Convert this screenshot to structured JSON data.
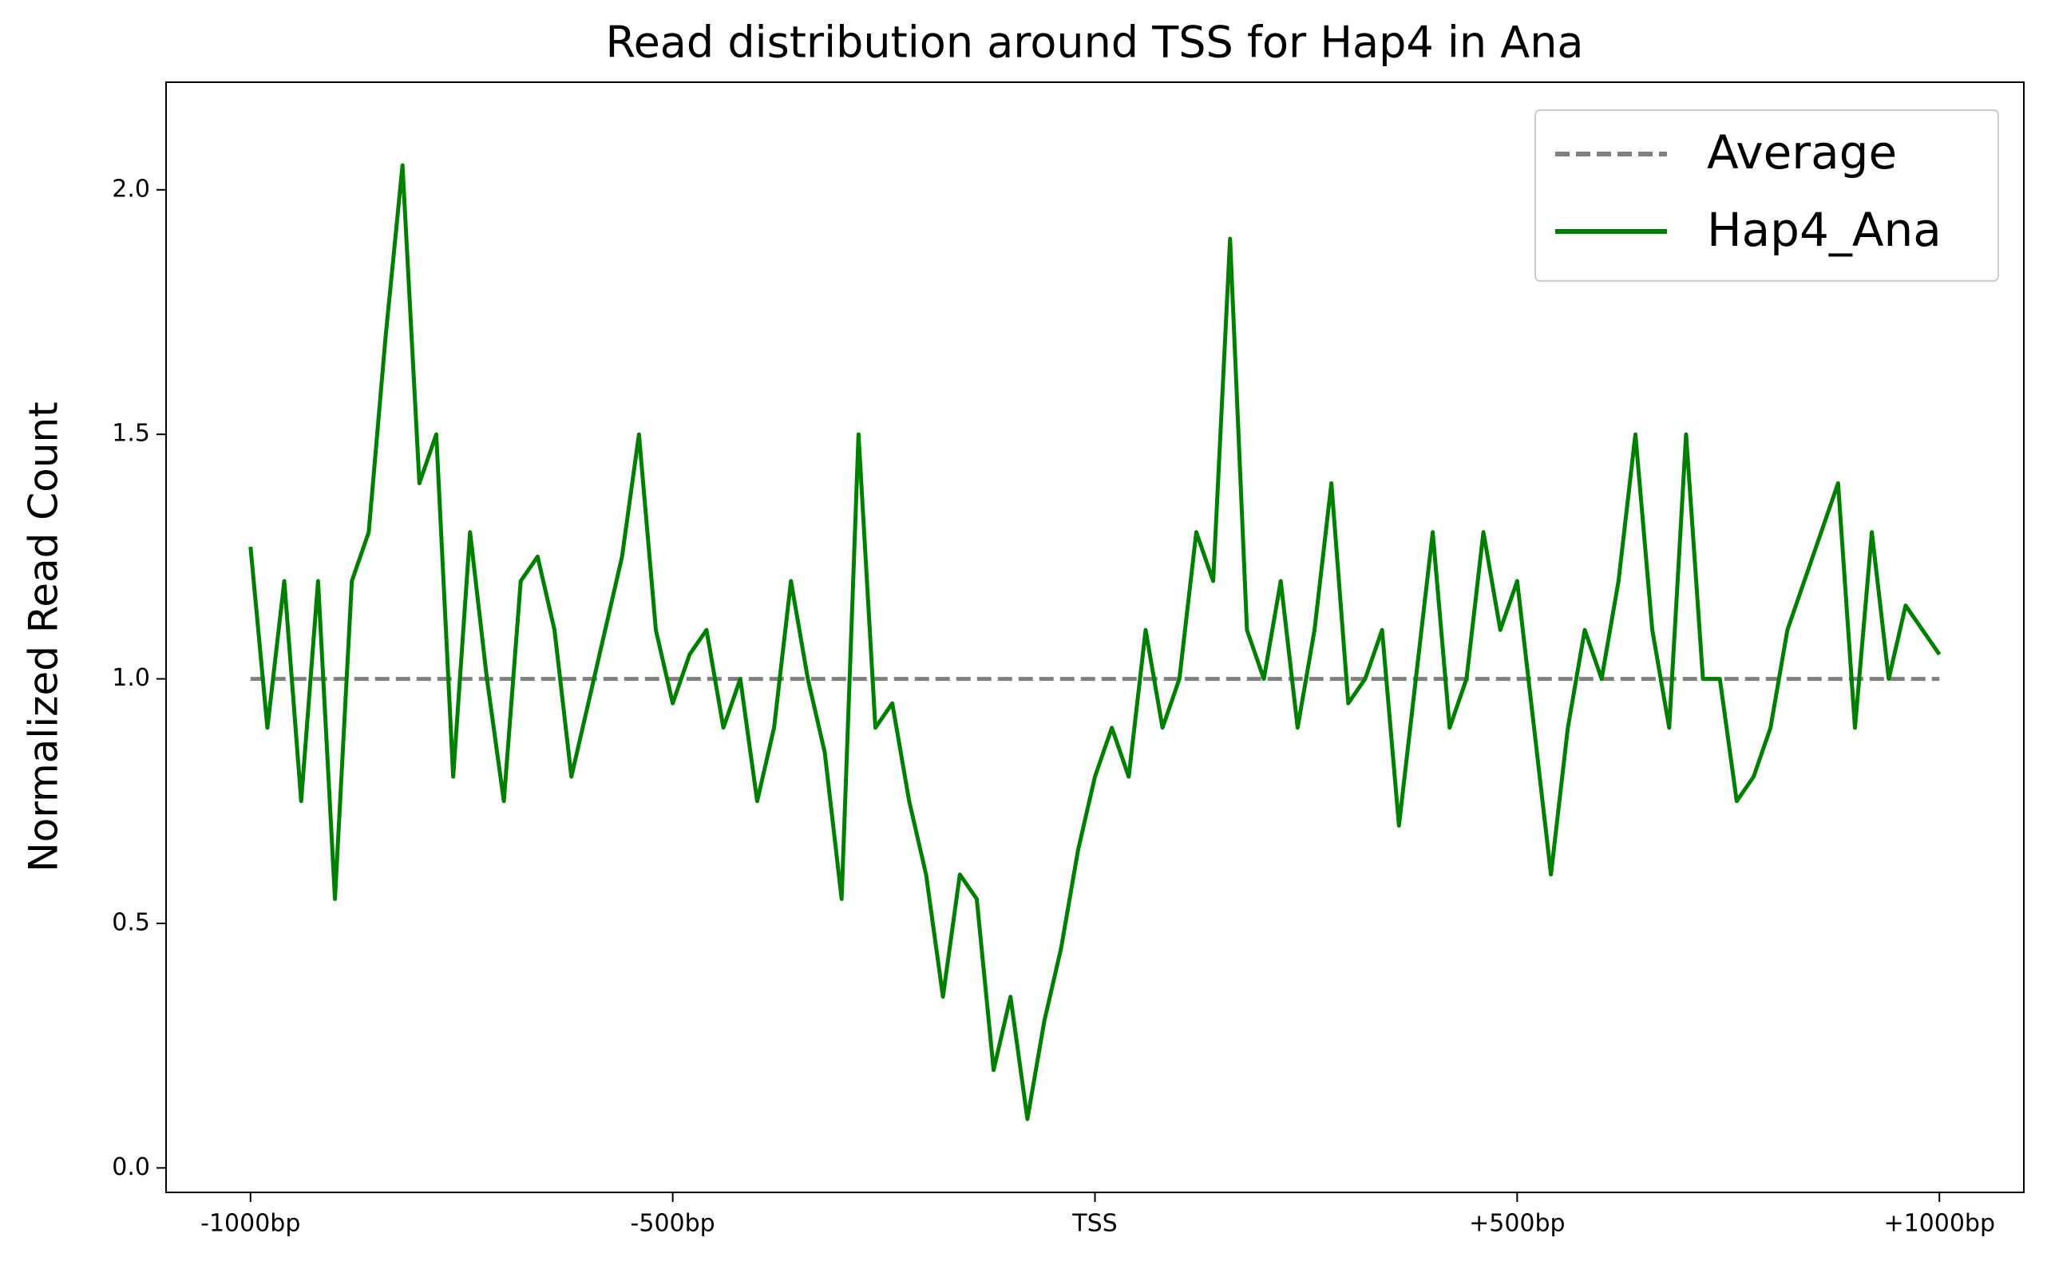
{
  "chart_data": {
    "type": "line",
    "title": "Read distribution around TSS for Hap4 in Ana",
    "ylabel": "Normalized Read Count",
    "x": [
      -1000,
      -980,
      -960,
      -940,
      -920,
      -900,
      -880,
      -860,
      -840,
      -820,
      -800,
      -780,
      -760,
      -740,
      -720,
      -700,
      -680,
      -660,
      -640,
      -620,
      -600,
      -580,
      -560,
      -540,
      -520,
      -500,
      -480,
      -460,
      -440,
      -420,
      -400,
      -380,
      -360,
      -340,
      -320,
      -300,
      -280,
      -260,
      -240,
      -220,
      -200,
      -180,
      -160,
      -140,
      -120,
      -100,
      -80,
      -60,
      -40,
      -20,
      0,
      20,
      40,
      60,
      80,
      100,
      120,
      140,
      160,
      180,
      200,
      220,
      240,
      260,
      280,
      300,
      320,
      340,
      360,
      380,
      400,
      420,
      440,
      460,
      480,
      500,
      520,
      540,
      560,
      580,
      600,
      620,
      640,
      660,
      680,
      700,
      720,
      740,
      760,
      780,
      800,
      820,
      840,
      860,
      880,
      900,
      920,
      940,
      960,
      980,
      1000
    ],
    "series": [
      {
        "name": "Average",
        "color": "#808080",
        "dashed": true,
        "x": [
          -1000,
          1000
        ],
        "values": [
          1,
          1
        ]
      },
      {
        "name": "Hap4_Ana",
        "color": "#008000",
        "dashed": false,
        "values": [
          1.27,
          0.9,
          1.2,
          0.75,
          1.2,
          0.55,
          1.2,
          1.3,
          1.7,
          2.05,
          1.4,
          1.5,
          0.8,
          1.3,
          1.0,
          0.75,
          1.2,
          1.25,
          1.1,
          0.8,
          0.95,
          1.1,
          1.25,
          1.5,
          1.1,
          0.95,
          1.05,
          1.1,
          0.9,
          1.0,
          0.75,
          0.9,
          1.2,
          1.0,
          0.85,
          0.55,
          1.5,
          0.9,
          0.95,
          0.75,
          0.6,
          0.35,
          0.6,
          0.55,
          0.2,
          0.35,
          0.1,
          0.3,
          0.45,
          0.65,
          0.8,
          0.9,
          0.8,
          1.1,
          0.9,
          1.0,
          1.3,
          1.2,
          1.9,
          1.1,
          1.0,
          1.2,
          0.9,
          1.1,
          1.4,
          0.95,
          1.0,
          1.1,
          0.7,
          1.0,
          1.3,
          0.9,
          1.0,
          1.3,
          1.1,
          1.2,
          0.9,
          0.6,
          0.9,
          1.1,
          1.0,
          1.2,
          1.5,
          1.1,
          0.9,
          1.5,
          1.0,
          1.0,
          0.75,
          0.8,
          0.9,
          1.1,
          1.2,
          1.3,
          1.4,
          0.9,
          1.3,
          1.0,
          1.15,
          1.1,
          1.05
        ]
      }
    ],
    "xlim": [
      -1100,
      1100
    ],
    "xticks": [
      {
        "value": -1000,
        "label": "-1000bp"
      },
      {
        "value": -500,
        "label": "-500bp"
      },
      {
        "value": 0,
        "label": "TSS"
      },
      {
        "value": 500,
        "label": "+500bp"
      },
      {
        "value": 1000,
        "label": "+1000bp"
      }
    ],
    "ylim": [
      -0.05,
      2.22
    ],
    "yticks": [
      {
        "value": 0,
        "label": "0.0"
      },
      {
        "value": 0.5,
        "label": "0.5"
      },
      {
        "value": 1,
        "label": "1.0"
      },
      {
        "value": 1.5,
        "label": "1.5"
      },
      {
        "value": 2,
        "label": "2.0"
      }
    ],
    "legend": "upper right"
  }
}
